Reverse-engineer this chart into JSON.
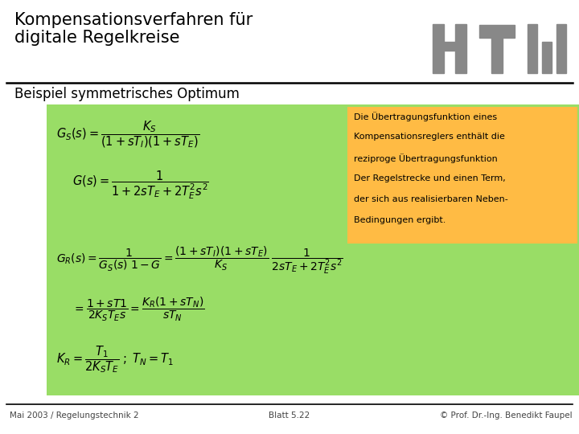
{
  "bg_color": "#ffffff",
  "title_text_line1": "Kompensationsverfahren für",
  "title_text_line2": "digitale Regelkreise",
  "title_color": "#000000",
  "title_fontsize": 15,
  "subtitle_text": "Beispiel symmetrisches Optimum",
  "subtitle_fontsize": 12,
  "subtitle_color": "#000000",
  "green_box_color": "#99dd66",
  "orange_box_color": "#ffbb44",
  "footer_left": "Mai 2003 / Regelungstechnik 2",
  "footer_center": "Blatt 5.22",
  "footer_right": "© Prof. Dr.-Ing. Benedikt Faupel",
  "footer_fontsize": 7.5,
  "footer_color": "#444444",
  "htw_color": "#888888",
  "separator_color": "#000000",
  "ann_lines": [
    "Die Übertragungsfunktion eines",
    "Kompensationsreglers enthält die",
    "reziproge Übertragungsfunktion",
    "Der Regelstrecke und einen Term,",
    "der sich aus realisierbaren Neben-",
    "Bedingungen ergibt."
  ]
}
